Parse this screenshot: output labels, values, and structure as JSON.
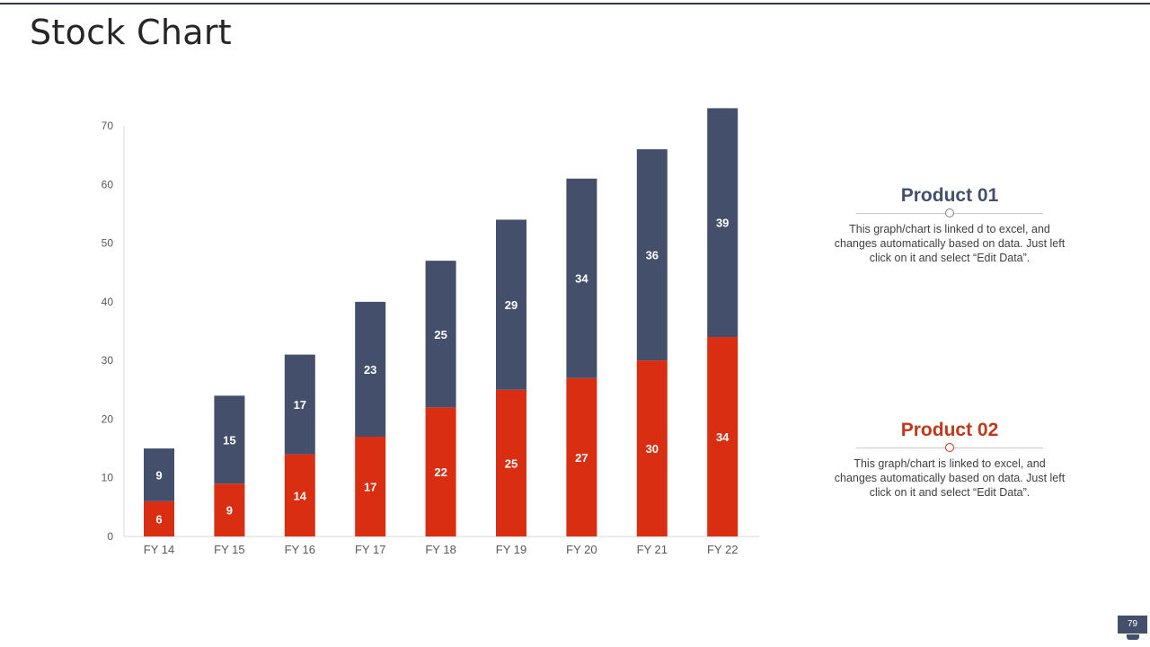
{
  "slide": {
    "title": "Stock Chart",
    "page_number": "79"
  },
  "colors": {
    "product_01": "#44506b",
    "product_02": "#d92e12",
    "axis": "#d9d9d9",
    "tick_text": "#595959"
  },
  "legend": [
    {
      "title": "Product 01",
      "description": "This graph/chart is linked d to excel, and changes automatically based on data. Just left click on it and select “Edit Data”."
    },
    {
      "title": "Product 02",
      "description": "This graph/chart is linked to excel, and changes automatically based on data. Just left click on it and select “Edit Data”."
    }
  ],
  "chart_data": {
    "type": "bar",
    "stacked": true,
    "title": "",
    "xlabel": "",
    "ylabel": "",
    "categories": [
      "FY 14",
      "FY 15",
      "FY 16",
      "FY 17",
      "FY 18",
      "FY 19",
      "FY 20",
      "FY 21",
      "FY 22"
    ],
    "series": [
      {
        "name": "Product 02",
        "values": [
          6,
          9,
          14,
          17,
          22,
          25,
          27,
          30,
          34
        ]
      },
      {
        "name": "Product 01",
        "values": [
          9,
          15,
          17,
          23,
          25,
          29,
          34,
          36,
          39
        ]
      }
    ],
    "ylim": [
      0,
      70
    ],
    "yticks": [
      0,
      10,
      20,
      30,
      40,
      50,
      60,
      70
    ],
    "grid": false,
    "data_labels": true
  }
}
